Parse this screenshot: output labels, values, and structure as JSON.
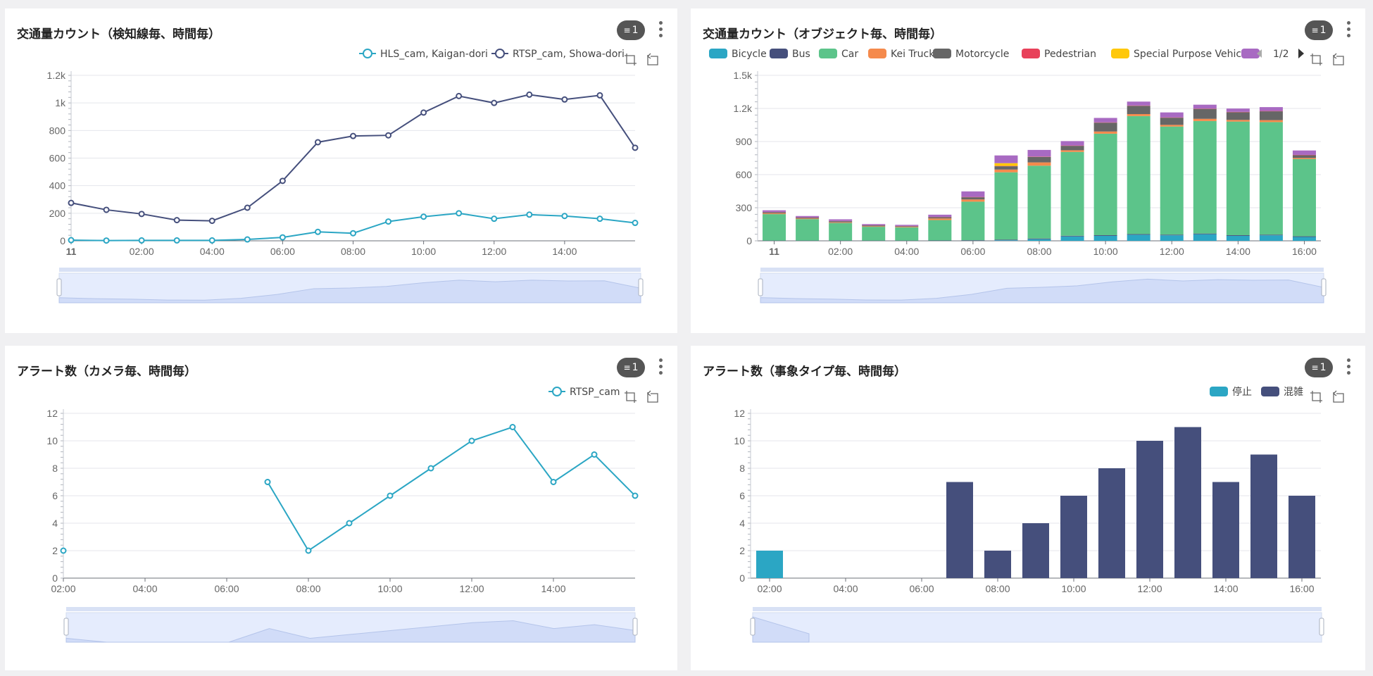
{
  "panels": [
    {
      "title": "交通量カウント（検知線毎、時間毎）",
      "filter_count": "1",
      "icons": [
        "filter-icon",
        "more-vertical-icon",
        "zoom-select-icon",
        "zoom-reset-icon"
      ]
    },
    {
      "title": "交通量カウント（オブジェクト毎、時間毎）",
      "filter_count": "1",
      "legend_page": "1/2",
      "icons": [
        "filter-icon",
        "more-vertical-icon",
        "legend-prev-icon",
        "legend-next-icon",
        "zoom-select-icon",
        "zoom-reset-icon"
      ]
    },
    {
      "title": "アラート数（カメラ毎、時間毎）",
      "filter_count": "1",
      "icons": [
        "filter-icon",
        "more-vertical-icon",
        "zoom-select-icon",
        "zoom-reset-icon"
      ]
    },
    {
      "title": "アラート数（事象タイプ毎、時間毎）",
      "filter_count": "1",
      "icons": [
        "filter-icon",
        "more-vertical-icon",
        "zoom-select-icon",
        "zoom-reset-icon"
      ]
    }
  ],
  "colors": {
    "teal": "#2ba6c4",
    "navy": "#454f7c",
    "car": "#5cc48a",
    "kei_truck": "#f58a4c",
    "motorcycle": "#666666",
    "pedestrian": "#e8415a",
    "special": "#ffc80a",
    "purple": "#a86ac2",
    "grid": "#e4e6eb",
    "zoom_fill": "#e5ecfd",
    "zoom_area": "#c9d6f5"
  },
  "chart_data": [
    {
      "type": "line",
      "x_tick_labels": [
        "11",
        "02:00",
        "04:00",
        "06:00",
        "08:00",
        "10:00",
        "12:00",
        "14:00"
      ],
      "y_tick_labels": [
        "0",
        "200",
        "400",
        "600",
        "800",
        "1k",
        "1.2k"
      ],
      "ylim": [
        0,
        1200
      ],
      "grid": true,
      "legend_position": "top-right",
      "series": [
        {
          "name": "HLS_cam, Kaigan-dori",
          "color": "#2ba6c4",
          "x": [
            0,
            1,
            2,
            3,
            4,
            5,
            6,
            7,
            8,
            9,
            10,
            11,
            12,
            13,
            14,
            15,
            16
          ],
          "values": [
            5,
            2,
            3,
            3,
            3,
            10,
            25,
            65,
            55,
            140,
            175,
            200,
            160,
            190,
            180,
            160,
            130
          ]
        },
        {
          "name": "RTSP_cam, Showa-dori",
          "color": "#454f7c",
          "x": [
            0,
            1,
            2,
            3,
            4,
            5,
            6,
            7,
            8,
            9,
            10,
            11,
            12,
            13,
            14,
            15,
            16
          ],
          "values": [
            275,
            225,
            195,
            150,
            145,
            240,
            435,
            715,
            760,
            765,
            930,
            1050,
            1000,
            1060,
            1025,
            1055,
            675
          ]
        }
      ]
    },
    {
      "type": "bar",
      "stacked": true,
      "x_tick_labels": [
        "11",
        "02:00",
        "04:00",
        "06:00",
        "08:00",
        "10:00",
        "12:00",
        "14:00",
        "16:00"
      ],
      "y_tick_labels": [
        "0",
        "300",
        "600",
        "900",
        "1.2k",
        "1.5k"
      ],
      "ylim": [
        0,
        1500
      ],
      "grid": true,
      "legend_position": "top",
      "legend": [
        "Bicycle",
        "Bus",
        "Car",
        "Kei Truck",
        "Motorcycle",
        "Pedestrian",
        "Special Purpose Vehicle"
      ],
      "categories": [
        0,
        1,
        2,
        3,
        4,
        5,
        6,
        7,
        8,
        9,
        10,
        11,
        12,
        13,
        14,
        15,
        16
      ],
      "series": [
        {
          "name": "Bicycle",
          "color": "#2ba6c4",
          "values": [
            0,
            0,
            0,
            0,
            0,
            0,
            0,
            5,
            15,
            40,
            45,
            55,
            50,
            60,
            45,
            50,
            35
          ]
        },
        {
          "name": "Bus",
          "color": "#454f7c",
          "values": [
            2,
            2,
            2,
            2,
            2,
            3,
            5,
            6,
            6,
            6,
            6,
            6,
            6,
            6,
            6,
            6,
            6
          ]
        },
        {
          "name": "Car",
          "color": "#5cc48a",
          "values": [
            240,
            195,
            160,
            125,
            120,
            185,
            350,
            610,
            660,
            760,
            920,
            1070,
            980,
            1020,
            1030,
            1020,
            700
          ]
        },
        {
          "name": "Kei Truck",
          "color": "#f58a4c",
          "values": [
            8,
            6,
            6,
            5,
            5,
            15,
            20,
            25,
            30,
            15,
            20,
            18,
            15,
            20,
            15,
            18,
            10
          ]
        },
        {
          "name": "Motorcycle",
          "color": "#666666",
          "values": [
            10,
            8,
            10,
            8,
            6,
            12,
            20,
            30,
            50,
            40,
            80,
            75,
            65,
            90,
            70,
            80,
            25
          ]
        },
        {
          "name": "Pedestrian",
          "color": "#e8415a",
          "values": [
            2,
            2,
            2,
            2,
            2,
            2,
            3,
            3,
            3,
            3,
            3,
            3,
            3,
            3,
            3,
            3,
            3
          ]
        },
        {
          "name": "Special Purpose Vehicle",
          "color": "#ffc80a",
          "values": [
            0,
            0,
            0,
            0,
            0,
            0,
            0,
            25,
            0,
            0,
            0,
            0,
            0,
            0,
            0,
            0,
            0
          ]
        },
        {
          "color": "#a86ac2",
          "values": [
            15,
            12,
            15,
            10,
            10,
            20,
            50,
            70,
            60,
            40,
            40,
            35,
            45,
            35,
            30,
            35,
            40
          ]
        }
      ]
    },
    {
      "type": "line",
      "x_tick_labels": [
        "02:00",
        "04:00",
        "06:00",
        "08:00",
        "10:00",
        "12:00",
        "14:00"
      ],
      "y_tick_labels": [
        "0",
        "2",
        "4",
        "6",
        "8",
        "10",
        "12"
      ],
      "ylim": [
        0,
        12
      ],
      "grid": true,
      "legend_position": "top-right",
      "series": [
        {
          "name": "RTSP_cam",
          "color": "#2ba6c4",
          "x": [
            2,
            3,
            4,
            5,
            6,
            7,
            8,
            9,
            10,
            11,
            12,
            13,
            14,
            15,
            16
          ],
          "values": [
            2,
            null,
            null,
            null,
            null,
            7,
            2,
            4,
            6,
            8,
            10,
            11,
            7,
            9,
            6
          ]
        }
      ]
    },
    {
      "type": "bar",
      "stacked": true,
      "x_tick_labels": [
        "02:00",
        "04:00",
        "06:00",
        "08:00",
        "10:00",
        "12:00",
        "14:00",
        "16:00"
      ],
      "y_tick_labels": [
        "0",
        "2",
        "4",
        "6",
        "8",
        "10",
        "12"
      ],
      "ylim": [
        0,
        12
      ],
      "grid": true,
      "legend_position": "top-right",
      "legend": [
        "停止",
        "混雑"
      ],
      "categories": [
        2,
        3,
        4,
        5,
        6,
        7,
        8,
        9,
        10,
        11,
        12,
        13,
        14,
        15,
        16
      ],
      "series": [
        {
          "name": "停止",
          "color": "#2ba6c4",
          "values": [
            2,
            0,
            0,
            0,
            0,
            0,
            0,
            0,
            0,
            0,
            0,
            0,
            0,
            0,
            0
          ]
        },
        {
          "name": "混雑",
          "color": "#454f7c",
          "values": [
            0,
            0,
            0,
            0,
            0,
            7,
            2,
            4,
            6,
            8,
            10,
            11,
            7,
            9,
            6
          ]
        }
      ]
    }
  ]
}
